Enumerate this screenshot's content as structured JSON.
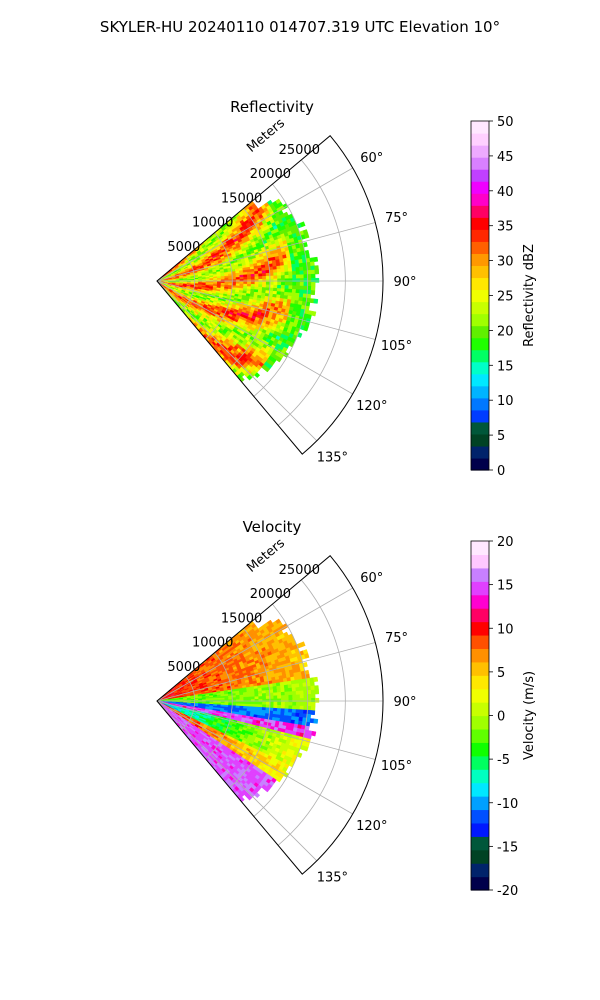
{
  "figure_title": "SKYLER-HU  20240110  014707.319 UTC Elevation 10°",
  "range_axis_label": "Meters",
  "chart_data": [
    {
      "type": "heatmap",
      "title": "Reflectivity",
      "projection": "polar",
      "azimuth_range_deg": [
        50,
        140
      ],
      "azimuth_ticks": [
        "60°",
        "75°",
        "90°",
        "105°",
        "120°",
        "135°"
      ],
      "range_ticks": [
        "5000",
        "10000",
        "15000",
        "20000",
        "25000"
      ],
      "range_max": 30000,
      "data_extent_range": 22000,
      "colorbar": {
        "label": "Reflectivity dBZ",
        "min": 0,
        "max": 50,
        "ticks": [
          "0",
          "5",
          "10",
          "15",
          "20",
          "25",
          "30",
          "35",
          "40",
          "45",
          "50"
        ],
        "colors": [
          "#00004b",
          "#00236b",
          "#004224",
          "#00573a",
          "#003cff",
          "#0078ff",
          "#00b4ff",
          "#00e8ff",
          "#00ffc8",
          "#00ff64",
          "#20ff00",
          "#60f000",
          "#a0ff00",
          "#c8ff00",
          "#f0ff00",
          "#ffe800",
          "#ffc000",
          "#ff9800",
          "#ff6000",
          "#ff2800",
          "#ff0000",
          "#ff0064",
          "#ff00c8",
          "#f000ff",
          "#c040ff",
          "#d880ff",
          "#eeaaff",
          "#ffd0ff",
          "#ffe8ff"
        ]
      },
      "grid": true
    },
    {
      "type": "heatmap",
      "title": "Velocity",
      "projection": "polar",
      "azimuth_range_deg": [
        50,
        140
      ],
      "azimuth_ticks": [
        "60°",
        "75°",
        "90°",
        "105°",
        "120°",
        "135°"
      ],
      "range_ticks": [
        "5000",
        "10000",
        "15000",
        "20000",
        "25000"
      ],
      "range_max": 30000,
      "data_extent_range": 22000,
      "colorbar": {
        "label": "Velocity (m/s)",
        "min": -20,
        "max": 20,
        "ticks": [
          "-20",
          "-15",
          "-10",
          "-5",
          "0",
          "5",
          "10",
          "15",
          "20"
        ],
        "colors": [
          "#00004b",
          "#00236b",
          "#004224",
          "#00573a",
          "#0018ff",
          "#0050ff",
          "#00a0ff",
          "#00e8ff",
          "#00ffc0",
          "#00ff60",
          "#10ff00",
          "#60ff00",
          "#a0ff00",
          "#c8ff00",
          "#f0ff00",
          "#ffe800",
          "#ffc000",
          "#ff9000",
          "#ff5000",
          "#ff0000",
          "#ff0064",
          "#ff00d0",
          "#e040ff",
          "#c880ff",
          "#ffc8ff",
          "#ffe8ff"
        ]
      },
      "grid": true
    }
  ]
}
